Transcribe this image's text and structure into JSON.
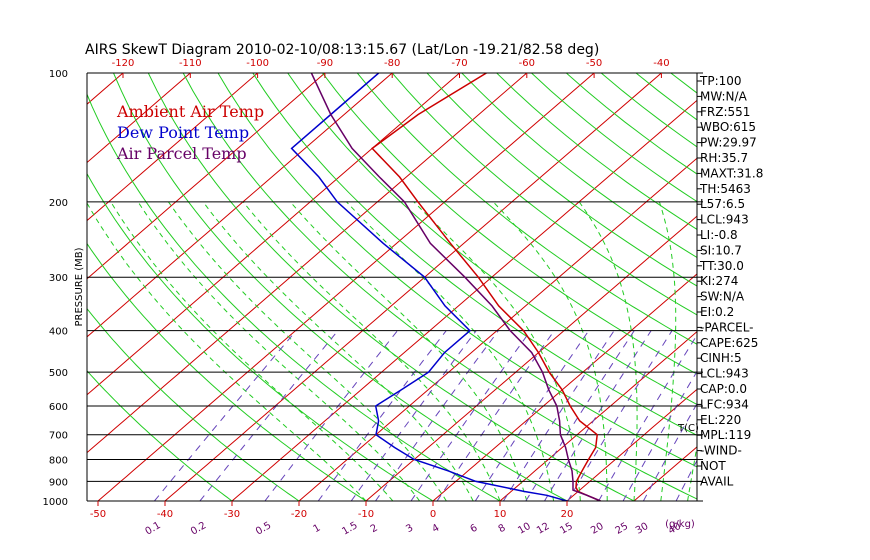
{
  "chart_data": {
    "type": "skew-t",
    "title": "AIRS SkewT Diagram 2010-02-10/08:13:15.67 (Lat/Lon -19.21/82.58 deg)",
    "ylabel": "PRESSURE (MB)",
    "pressure_ticks": [
      "100",
      "200",
      "300",
      "400",
      "500",
      "600",
      "700",
      "800",
      "900",
      "1000"
    ],
    "temp_top_ticks": [
      "-120",
      "-110",
      "-100",
      "-90",
      "-80",
      "-70",
      "-60",
      "-50",
      "-40"
    ],
    "temp_bottom_ticks": [
      "-50",
      "-40",
      "-30",
      "-20",
      "-10",
      "0",
      "10",
      "20"
    ],
    "temp_unit_label": "T(C)",
    "mixing_ratio_labels": [
      "0.1",
      "0.2",
      "0.5",
      "1",
      "1.5",
      "2",
      "3",
      "4",
      "6",
      "8",
      "10",
      "12",
      "15",
      "20",
      "25",
      "30",
      "40"
    ],
    "mixing_ratio_unit": "(g/kg)",
    "legend": [
      {
        "label": "Ambient Air Temp",
        "color": "#cc0000"
      },
      {
        "label": "Dew Point Temp",
        "color": "#0000cc"
      },
      {
        "label": "Air Parcel Temp",
        "color": "#660066"
      }
    ],
    "indices": [
      "TP:100",
      "MW:N/A",
      "FRZ:551",
      "WBO:615",
      "PW:29.97",
      "RH:35.7",
      "MAXT:31.8",
      "TH:5463",
      "L57:6.5",
      "LCL:943",
      "LI:-0.8",
      "SI:10.7",
      "TT:30.0",
      "KI:274",
      "SW:N/A",
      "EI:0.2",
      "-PARCEL-",
      "CAPE:625",
      "CINH:5",
      "LCL:943",
      "CAP:0.0",
      "LFC:934",
      "EL:220",
      "MPL:119",
      "-WIND-",
      "NOT",
      "AVAIL"
    ],
    "series": [
      {
        "name": "Ambient Air Temp",
        "points": [
          [
            1000,
            25
          ],
          [
            970,
            22
          ],
          [
            950,
            20
          ],
          [
            930,
            19
          ],
          [
            900,
            18
          ],
          [
            850,
            17
          ],
          [
            800,
            16
          ],
          [
            750,
            15
          ],
          [
            700,
            13
          ],
          [
            650,
            8
          ],
          [
            600,
            4
          ],
          [
            550,
            0
          ],
          [
            500,
            -5
          ],
          [
            450,
            -10
          ],
          [
            400,
            -16
          ],
          [
            350,
            -24
          ],
          [
            300,
            -32
          ],
          [
            250,
            -42
          ],
          [
            200,
            -54
          ],
          [
            175,
            -61
          ],
          [
            150,
            -70
          ],
          [
            125,
            -69
          ],
          [
            100,
            -66
          ]
        ]
      },
      {
        "name": "Dew Point Temp",
        "points": [
          [
            1000,
            20
          ],
          [
            970,
            16
          ],
          [
            950,
            12
          ],
          [
            900,
            3
          ],
          [
            850,
            -3
          ],
          [
            800,
            -10
          ],
          [
            750,
            -15
          ],
          [
            700,
            -20
          ],
          [
            650,
            -22
          ],
          [
            600,
            -25
          ],
          [
            550,
            -24
          ],
          [
            500,
            -23
          ],
          [
            450,
            -24
          ],
          [
            400,
            -24
          ],
          [
            350,
            -32
          ],
          [
            300,
            -40
          ],
          [
            250,
            -52
          ],
          [
            200,
            -66
          ],
          [
            175,
            -73
          ],
          [
            150,
            -82
          ],
          [
            125,
            -82
          ],
          [
            100,
            -82
          ]
        ]
      },
      {
        "name": "Air Parcel Temp",
        "points": [
          [
            1000,
            25
          ],
          [
            970,
            22
          ],
          [
            943,
            19
          ],
          [
            900,
            17.5
          ],
          [
            850,
            15.5
          ],
          [
            800,
            13
          ],
          [
            750,
            10.5
          ],
          [
            700,
            7.5
          ],
          [
            650,
            5
          ],
          [
            600,
            2
          ],
          [
            550,
            -2
          ],
          [
            500,
            -6
          ],
          [
            450,
            -11
          ],
          [
            400,
            -18
          ],
          [
            350,
            -25
          ],
          [
            300,
            -34
          ],
          [
            250,
            -45
          ],
          [
            200,
            -56
          ],
          [
            175,
            -64
          ],
          [
            150,
            -73
          ],
          [
            125,
            -82
          ],
          [
            100,
            -92
          ]
        ]
      }
    ],
    "grid": true
  }
}
